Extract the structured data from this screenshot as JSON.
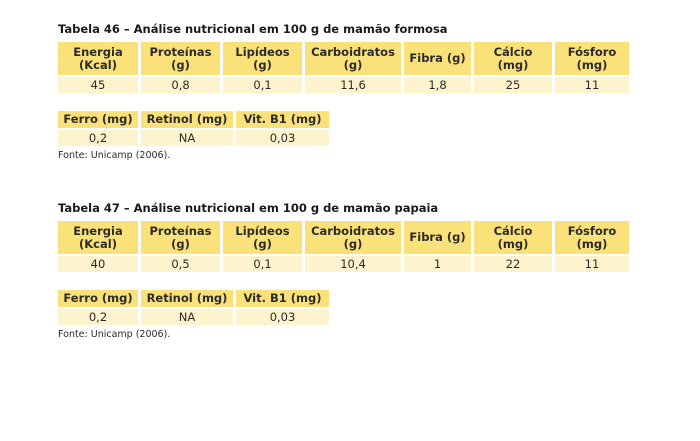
{
  "table46": {
    "title": "Tabela 46 – Análise nutricional em 100 g de mamão formosa",
    "headers": [
      "Energia\n(Kcal)",
      "Proteínas\n(g)",
      "Lipídeos\n(g)",
      "Carboidratos\n(g)",
      "Fibra (g)",
      "Cálcio\n(mg)",
      "Fósforo\n(mg)"
    ],
    "values": [
      "45",
      "0,8",
      "0,1",
      "11,6",
      "1,8",
      "25",
      "11"
    ],
    "small_headers": [
      "Ferro (mg)",
      "Retinol (mg)",
      "Vit. B1 (mg)"
    ],
    "small_values": [
      "0,2",
      "NA",
      "0,03"
    ],
    "source": "Fonte: Unicamp (2006)."
  },
  "table47": {
    "title": "Tabela 47 – Análise nutricional em 100 g de mamão papaia",
    "headers": [
      "Energia\n(Kcal)",
      "Proteínas\n(g)",
      "Lipídeos\n(g)",
      "Carboidratos\n(g)",
      "Fibra (g)",
      "Cálcio\n(mg)",
      "Fósforo\n(mg)"
    ],
    "values": [
      "40",
      "0,5",
      "0,1",
      "10,4",
      "1",
      "22",
      "11"
    ],
    "small_headers": [
      "Ferro (mg)",
      "Retinol (mg)",
      "Vit. B1 (mg)"
    ],
    "small_values": [
      "0,2",
      "NA",
      "0,03"
    ],
    "source": "Fonte: Unicamp (2006)."
  },
  "colors": {
    "header_bg": "#fbe17a",
    "cell_bg": "#fdf3cc"
  }
}
